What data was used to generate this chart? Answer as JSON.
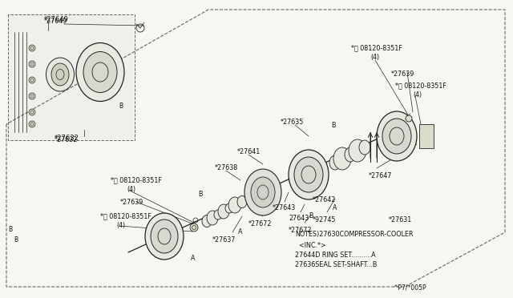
{
  "bg_color": "#f7f7f2",
  "line_color": "#222222",
  "fig_width": 6.4,
  "fig_height": 3.72,
  "notes_line1": "NOTES)27630COMPRESSOR-COOLER",
  "notes_line2": "  <INC.*>",
  "notes_line3": "27644D RING SET..........A",
  "notes_line4": "27636SEAL SET-SHAFT...B",
  "part_code": "^P7/*005P"
}
